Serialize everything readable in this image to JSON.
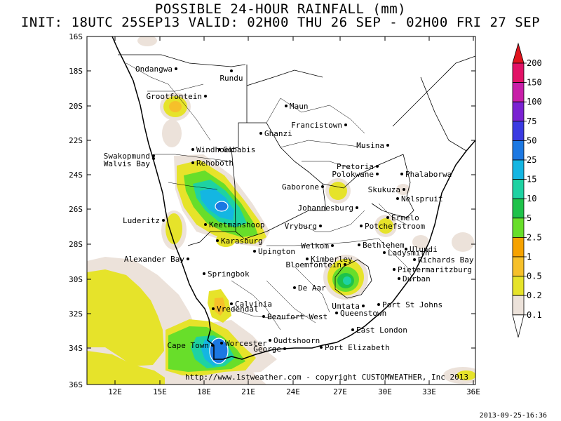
{
  "title_line1": "POSSIBLE 24-HOUR  RAINFALL (mm)",
  "title_line2": "INIT: 18UTC 25SEP13  VALID: 02H00 THU 26 SEP - 02H00 FRI 27 SEP",
  "credit": "http://www.1stweather.com - copyright CUSTOMWEATHER, Inc 2013",
  "timestamp": "2013-09-25-16:36",
  "axes": {
    "lon_ticks": [
      "12E",
      "15E",
      "18E",
      "21E",
      "24E",
      "27E",
      "30E",
      "33E",
      "36E"
    ],
    "lat_ticks": [
      "16S",
      "18S",
      "20S",
      "22S",
      "24S",
      "26S",
      "28S",
      "30S",
      "32S",
      "34S",
      "36S"
    ]
  },
  "legend": {
    "levels": [
      "0.1",
      "0.2",
      "0.5",
      "1",
      "2.5",
      "5",
      "10",
      "15",
      "25",
      "50",
      "75",
      "100",
      "150",
      "200"
    ],
    "colors": [
      "#ffffff",
      "#ece2da",
      "#e6e32a",
      "#f6c02a",
      "#f6a200",
      "#68de2a",
      "#1ec24a",
      "#1ed2a2",
      "#14b6e2",
      "#1c78e2",
      "#3a3ae2",
      "#7a22d2",
      "#c81ea8",
      "#e21266",
      "#e0141e"
    ]
  },
  "cities": [
    {
      "name": "Ondangwa"
    },
    {
      "name": "Rundu"
    },
    {
      "name": "Grootfontein"
    },
    {
      "name": "Maun"
    },
    {
      "name": "Francistown"
    },
    {
      "name": "Ghanzi"
    },
    {
      "name": "Swakopmund"
    },
    {
      "name": "Walvis Bay"
    },
    {
      "name": "Windhoek"
    },
    {
      "name": "Gobabis"
    },
    {
      "name": "Rehoboth"
    },
    {
      "name": "Musina"
    },
    {
      "name": "Pretoria"
    },
    {
      "name": "Polokwane"
    },
    {
      "name": "Phalaborwa"
    },
    {
      "name": "Gaborone"
    },
    {
      "name": "Skukuza"
    },
    {
      "name": "Nelspruit"
    },
    {
      "name": "Johannesburg"
    },
    {
      "name": "Luderitz"
    },
    {
      "name": "Keetmanshoop"
    },
    {
      "name": "Vryburg"
    },
    {
      "name": "Potchefstroom"
    },
    {
      "name": "Ermelo"
    },
    {
      "name": "Karasburg"
    },
    {
      "name": "Upington"
    },
    {
      "name": "Welkom"
    },
    {
      "name": "Bethlehem"
    },
    {
      "name": "Ulundi"
    },
    {
      "name": "Ladysmith"
    },
    {
      "name": "Richards Bay"
    },
    {
      "name": "Alexander Bay"
    },
    {
      "name": "Kimberley"
    },
    {
      "name": "Bloemfontein"
    },
    {
      "name": "Springbok"
    },
    {
      "name": "Pietermaritzburg"
    },
    {
      "name": "Durban"
    },
    {
      "name": "De Aar"
    },
    {
      "name": "Calvinia"
    },
    {
      "name": "Vredendal"
    },
    {
      "name": "Umtata"
    },
    {
      "name": "Port St Johns"
    },
    {
      "name": "Beaufort West"
    },
    {
      "name": "Queenstown"
    },
    {
      "name": "East London"
    },
    {
      "name": "Worcester"
    },
    {
      "name": "Oudtshoorn"
    },
    {
      "name": "Cape Town"
    },
    {
      "name": "George"
    },
    {
      "name": "Port Elizabeth"
    }
  ]
}
